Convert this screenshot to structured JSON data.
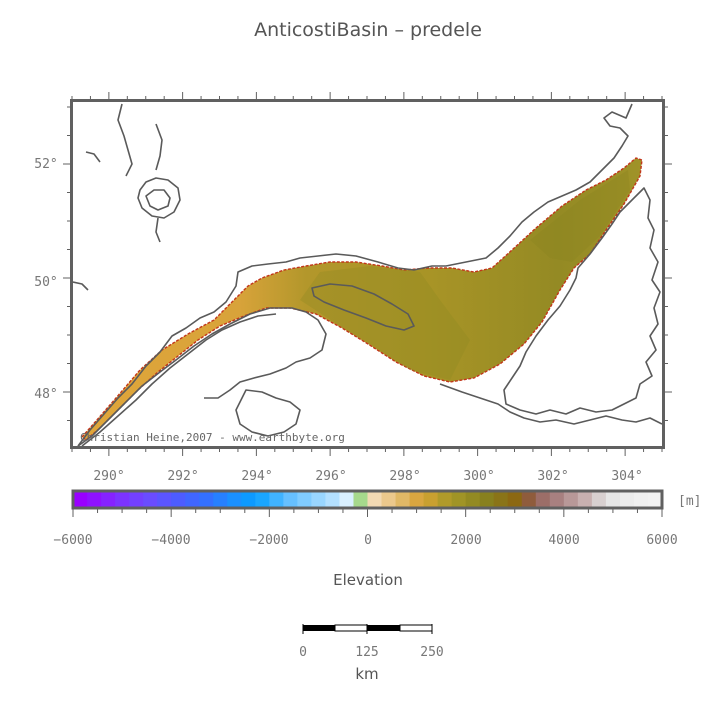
{
  "title": "AnticostiBasin – predele",
  "credit": "Christian Heine,2007 - www.earthbyte.org",
  "map": {
    "lon_ticks": [
      "290°",
      "292°",
      "294°",
      "296°",
      "298°",
      "300°",
      "302°",
      "304°"
    ],
    "lat_ticks": [
      "52°",
      "50°",
      "48°"
    ]
  },
  "colorbar": {
    "label": "Elevation",
    "unit": "[m]",
    "ticks": [
      "−6000",
      "−4000",
      "−2000",
      "0",
      "2000",
      "4000",
      "6000"
    ],
    "colors": [
      "#9900ff",
      "#8f11ff",
      "#8622ff",
      "#7c33ff",
      "#7340ff",
      "#6a4cff",
      "#5b55ff",
      "#4d5cff",
      "#4066ff",
      "#3370ff",
      "#2680ff",
      "#1a90ff",
      "#0d9aff",
      "#1aa6ff",
      "#40b3ff",
      "#66c0ff",
      "#80ccff",
      "#99d6ff",
      "#b3e0ff",
      "#d9f0ff",
      "#a6d98c",
      "#f2d9b3",
      "#ebc88c",
      "#e0b866",
      "#d9a640",
      "#c9a030",
      "#b09a2a",
      "#a09426",
      "#938a22",
      "#88801e",
      "#8a7418",
      "#8c6812",
      "#8f5c3c",
      "#9c6e68",
      "#a88080",
      "#b89898",
      "#c8b0b0",
      "#d8d0d0",
      "#e6e6e6",
      "#ececec",
      "#f0f0f0",
      "#f2f2f2"
    ]
  },
  "scale": {
    "ticks": [
      "0",
      "125",
      "250"
    ],
    "unit": "km"
  }
}
